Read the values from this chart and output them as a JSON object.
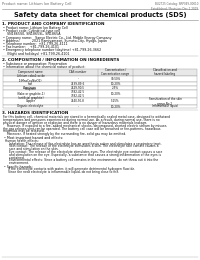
{
  "title": "Safety data sheet for chemical products (SDS)",
  "header_left": "Product name: Lithium Ion Battery Cell",
  "header_right": "BU2725 Catalog: SRP049-00010\nEstablished / Revision: Dec.1.2019",
  "section1_title": "1. PRODUCT AND COMPANY IDENTIFICATION",
  "section1_lines": [
    "• Product name: Lithium Ion Battery Cell",
    "• Product code: Cylindrical-type cell",
    "    SN1865S0, SN1865SL, SN1865A",
    "• Company name:   Sanyo Electric Co., Ltd. Mobile Energy Company",
    "• Address:            2021 Kamiyamaori, Sumoto-City, Hyogo, Japan",
    "• Telephone number:  +81-799-26-4111",
    "• Fax number:    +81-799-26-4101",
    "• Emergency telephone number (daytime) +81-799-26-3662",
    "    (Night and holidays) +81-799-26-4101"
  ],
  "section2_title": "2. COMPOSITION / INFORMATION ON INGREDIENTS",
  "section2_intro": "• Substance or preparation: Preparation",
  "section2_table_header": "• Information about the chemical nature of product:",
  "table_cols": [
    "Component name",
    "CAS number",
    "Concentration /\nConcentration range",
    "Classification and\nhazard labeling"
  ],
  "table_rows": [
    [
      "Lithium cobalt oxide\n(LiMnxCoyNizO2)",
      "-",
      "30-50%",
      ""
    ],
    [
      "Iron",
      "7439-89-6",
      "10-20%",
      ""
    ],
    [
      "Aluminum",
      "7429-90-5",
      "2-5%",
      ""
    ],
    [
      "Graphite\n(flake or graphite-1)\n(artificial graphite)",
      "7782-42-5\n7782-42-5",
      "10-20%",
      ""
    ],
    [
      "Copper",
      "7440-50-8",
      "5-15%",
      "Sensitization of the skin\ngroup No.2"
    ],
    [
      "Organic electrolyte",
      "-",
      "10-20%",
      "Inflammable liquid"
    ]
  ],
  "section3_title": "3. HAZARDS IDENTIFICATION",
  "section3_lines": [
    "For this battery cell, chemical materials are stored in a hermetically sealed metal case, designed to withstand",
    "temperatures and pressures experienced during normal use. As a result, during normal use, there is no",
    "physical danger of ignition or explosion and there is no danger of hazardous materials leakage.",
    "    However, if exposed to a fire, added mechanical shocks, decomposed, shorted electric stream by misuse,",
    "the gas release vent can be operated. The battery cell case will be breached or fire-patterns, hazardous",
    "materials may be released.",
    "    Moreover, if heated strongly by the surrounding fire, solid gas may be emitted."
  ],
  "section3_hazards_title": "• Most important hazard and effects:",
  "section3_human_lines": [
    "Human health effects:",
    "    Inhalation: The release of the electrolyte has an anesthesia action and stimulates a respiratory tract.",
    "    Skin contact: The release of the electrolyte stimulates a skin. The electrolyte skin contact causes a",
    "    sore and stimulation on the skin.",
    "    Eye contact: The release of the electrolyte stimulates eyes. The electrolyte eye contact causes a sore",
    "    and stimulation on the eye. Especially, a substance that causes a strong inflammation of the eyes is",
    "    contained.",
    "    Environmental effects: Since a battery cell remains in the environment, do not throw out it into the",
    "    environment."
  ],
  "section3_specific_lines": [
    "• Specific hazards:",
    "    If the electrolyte contacts with water, it will generate detrimental hydrogen fluoride.",
    "    Since the neat electrolyte is inflammable liquid, do not bring close to fire."
  ],
  "bg_color": "#ffffff",
  "text_color": "#111111",
  "gray_text": "#666666",
  "line_color": "#aaaaaa",
  "table_border": "#999999",
  "table_header_bg": "#e8e8e8"
}
